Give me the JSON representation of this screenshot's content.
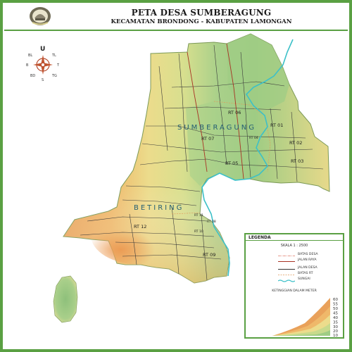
{
  "header": {
    "title": "PETA DESA SUMBERAGUNG",
    "subtitle": "KECAMATAN BRONDONG  -  KABUPATEN LAMONGAN"
  },
  "compass": {
    "north": "U",
    "labels": {
      "nw": "BL",
      "ne": "TL",
      "w": "B",
      "e": "T",
      "sw": "BD",
      "s": "S",
      "se": "TG"
    }
  },
  "map": {
    "villages": [
      "SUMBERAGUNG",
      "BETIRING"
    ],
    "rt_labels": [
      "RT 01",
      "RT 02",
      "RT 03",
      "RT 04",
      "RT 05",
      "RT 06",
      "RT 07",
      "RT 08",
      "RT 09",
      "RT 10",
      "RT 11",
      "RT 12"
    ]
  },
  "legend": {
    "title": "LEGENDA",
    "scale": "SKALA 1 : 2500",
    "items": [
      {
        "label": "BATAS DESA",
        "color": "#e07a6a",
        "style": "dash-dot"
      },
      {
        "label": "JALAN RAYA",
        "color": "#a83224",
        "style": "solid"
      },
      {
        "label": "JALAN DESA",
        "color": "#333333",
        "style": "solid"
      },
      {
        "label": "BATAS RT",
        "color": "#e09a5a",
        "style": "dash"
      },
      {
        "label": "SUNGAI",
        "color": "#3cc0c8",
        "style": "wave"
      }
    ],
    "elevation_title": "KETINGGIAN DALAM METER",
    "elevation_levels": [
      "60",
      "55",
      "50",
      "45",
      "40",
      "35",
      "30",
      "20",
      "10"
    ]
  },
  "colors": {
    "border_green": "#5aa043",
    "river": "#3cc0c8",
    "low_green": "#9fcc84",
    "mid_yellow": "#ecdc8c",
    "high_orange": "#e9a15a"
  }
}
